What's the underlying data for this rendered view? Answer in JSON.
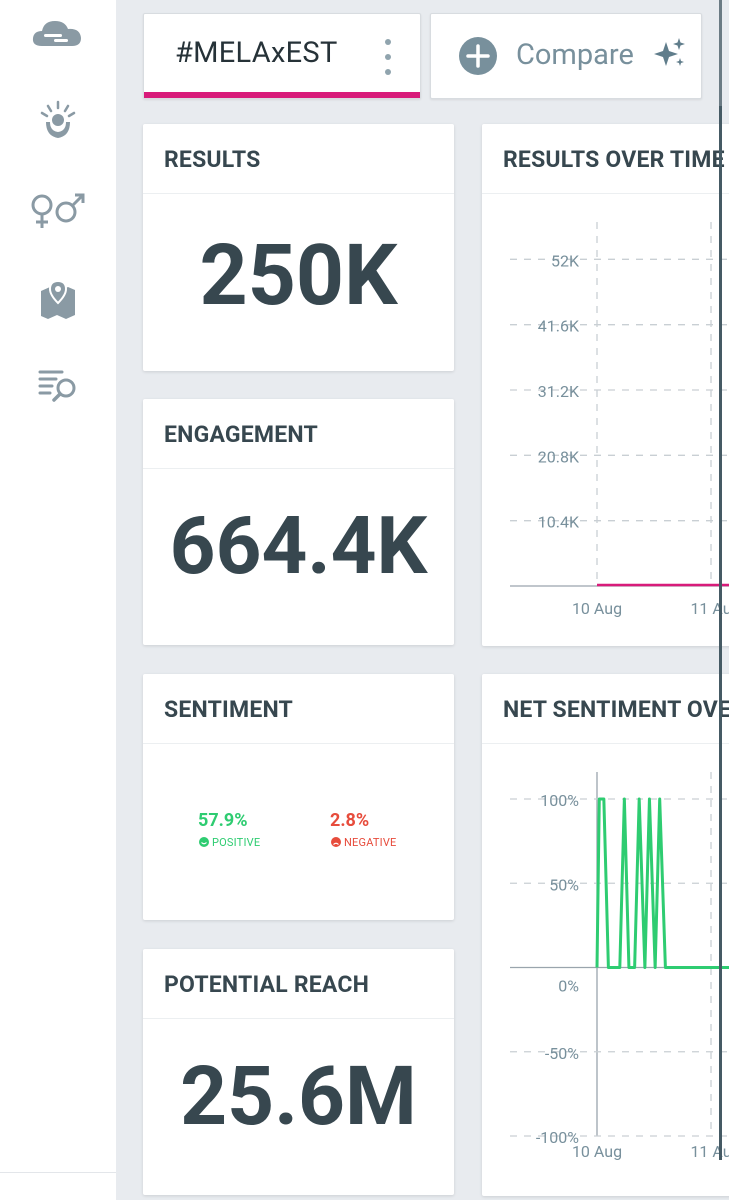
{
  "tabs": {
    "active": {
      "label": "#MELAxEST",
      "accent": "#d81b7a"
    },
    "compare": {
      "label": "Compare"
    }
  },
  "sidebar": {
    "items": [
      {
        "icon": "cloud-icon"
      },
      {
        "icon": "influencer-icon"
      },
      {
        "icon": "gender-icon"
      },
      {
        "icon": "map-icon"
      },
      {
        "icon": "list-search-icon"
      }
    ]
  },
  "cards": {
    "results": {
      "title": "RESULTS",
      "value": "250K"
    },
    "engagement": {
      "title": "ENGAGEMENT",
      "value": "664.4K"
    },
    "sentiment": {
      "title": "SENTIMENT",
      "positive_value": "57.9%",
      "positive_label": "POSITIVE",
      "positive_color": "#2ecc71",
      "negative_value": "2.8%",
      "negative_label": "NEGATIVE",
      "negative_color": "#e74c3c"
    },
    "reach": {
      "title": "POTENTIAL REACH",
      "value": "25.6M"
    },
    "results_over_time": {
      "title": "RESULTS OVER TIME"
    },
    "net_sentiment": {
      "title": "NET SENTIMENT OVER TIME"
    }
  },
  "chart_data": [
    {
      "type": "line",
      "title": "RESULTS OVER TIME",
      "y_ticks": [
        "52K",
        "41.6K",
        "31.2K",
        "20.8K",
        "10.4K"
      ],
      "y_tick_values": [
        52000,
        41600,
        31200,
        20800,
        10400
      ],
      "x_ticks": [
        "10 Aug",
        "11 Au"
      ],
      "ylim": [
        0,
        62400
      ],
      "series": [
        {
          "name": "#MELAxEST",
          "color": "#d81b7a",
          "x": [
            0,
            1.3
          ],
          "values": [
            0,
            0
          ]
        }
      ]
    },
    {
      "type": "line",
      "title": "NET SENTIMENT OVER TIME",
      "y_ticks": [
        "100%",
        "50%",
        "0%",
        "-50%",
        "-100%"
      ],
      "y_tick_values": [
        100,
        50,
        0,
        -50,
        -100
      ],
      "x_ticks": [
        "10 Aug",
        "11 Au"
      ],
      "ylim": [
        -100,
        100
      ],
      "series": [
        {
          "name": "net sentiment",
          "color": "#2ecc71",
          "x": [
            0,
            0.02,
            0.06,
            0.1,
            0.2,
            0.24,
            0.28,
            0.33,
            0.37,
            0.42,
            0.46,
            0.51,
            0.55,
            0.6,
            1.3
          ],
          "values": [
            0,
            100,
            100,
            0,
            0,
            100,
            0,
            0,
            100,
            0,
            100,
            0,
            100,
            0,
            0
          ]
        }
      ]
    }
  ]
}
